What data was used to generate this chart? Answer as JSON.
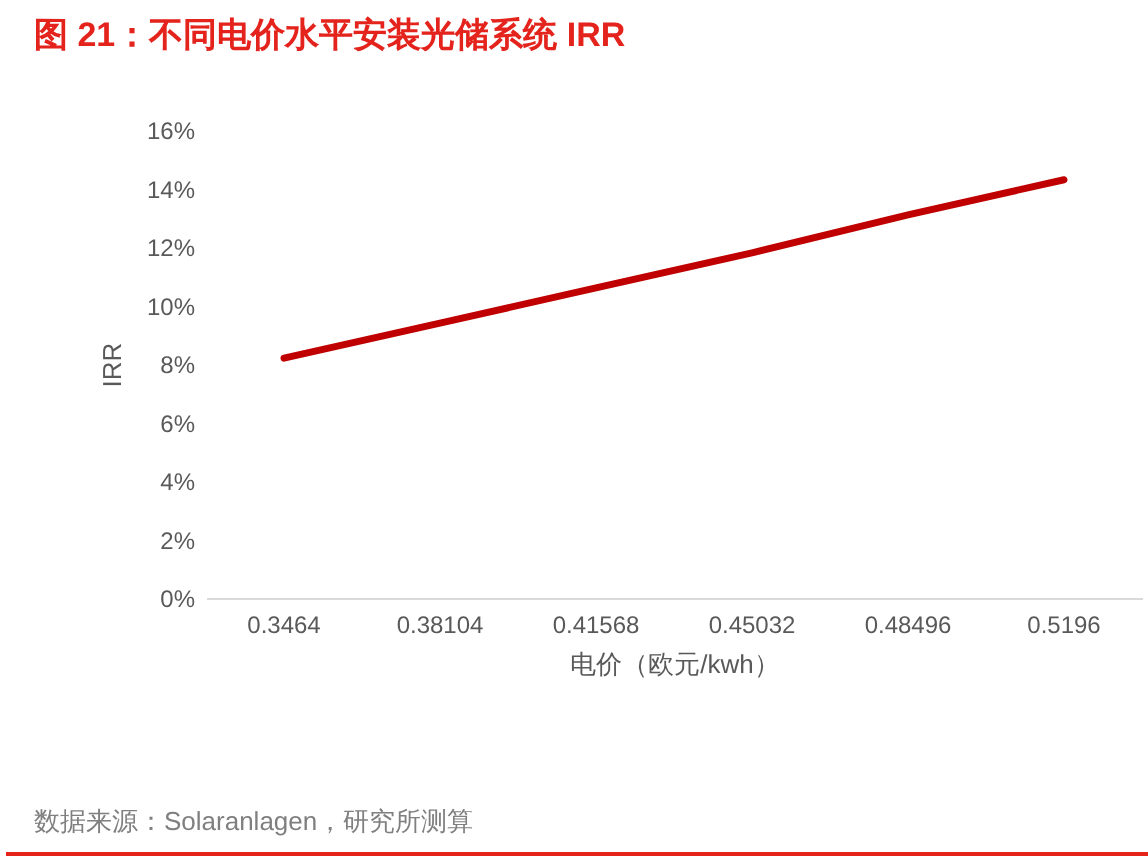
{
  "chart_data": {
    "type": "line",
    "title": "图 21：不同电价水平安装光储系统 IRR",
    "xlabel": "电价（欧元/kwh）",
    "ylabel": "IRR",
    "categories": [
      "0.3464",
      "0.38104",
      "0.41568",
      "0.45032",
      "0.48496",
      "0.5196"
    ],
    "series": [
      {
        "color": "#c00000",
        "values": [
          8.2,
          9.4,
          10.6,
          11.8,
          13.1,
          14.3
        ]
      }
    ],
    "ylim": [
      0,
      16
    ],
    "yticks": [
      {
        "value": 0,
        "label": "0%"
      },
      {
        "value": 2,
        "label": "2%"
      },
      {
        "value": 4,
        "label": "4%"
      },
      {
        "value": 6,
        "label": "6%"
      },
      {
        "value": 8,
        "label": "8%"
      },
      {
        "value": 10,
        "label": "10%"
      },
      {
        "value": 12,
        "label": "12%"
      },
      {
        "value": 14,
        "label": "14%"
      },
      {
        "value": 16,
        "label": "16%"
      }
    ],
    "grid": false,
    "marker": "none",
    "line_style": "solid",
    "annotations": [
      "数据来源：Solaranlagen，研究所测算"
    ]
  }
}
